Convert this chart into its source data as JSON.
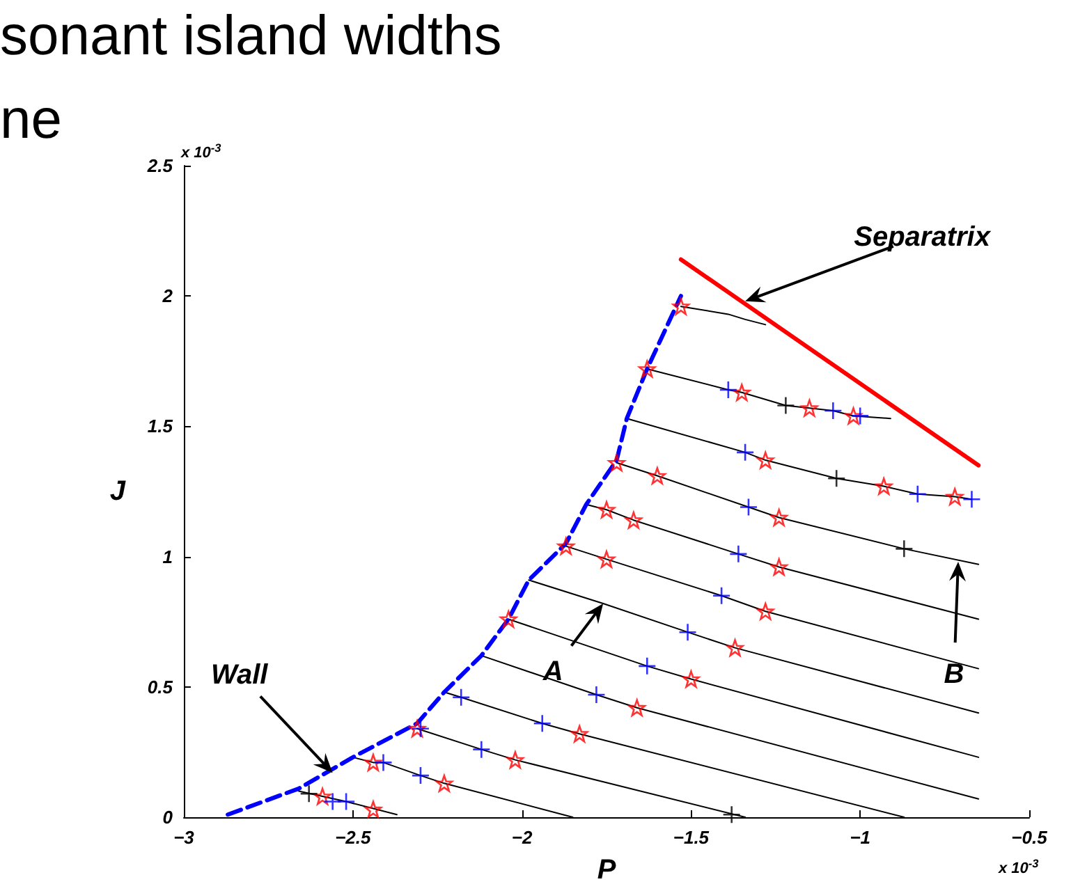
{
  "chart_data": {
    "type": "line",
    "title": "sonant island widths",
    "subtitle": "ne",
    "xlabel": "P",
    "ylabel": "J",
    "xlim": [
      -3,
      -0.5
    ],
    "xticks": [
      -3,
      -2.5,
      -2,
      -1.5,
      -1,
      -0.5
    ],
    "ylim": [
      0,
      2.5
    ],
    "yticks": [
      0,
      0.5,
      1,
      1.5,
      2,
      2.5
    ],
    "grid": false,
    "marker": "none",
    "annotations": [
      "x 10$^{-3}$",
      "x 10$^{-3}$",
      {
        "text": "Separatrix",
        "x": -1.34,
        "y": 1.98
      },
      {
        "text": "Wall",
        "x": -2.56,
        "y": 0.17
      },
      {
        "text": "A",
        "x": -1.76,
        "y": 0.82
      },
      {
        "text": "B",
        "x": -0.71,
        "y": 0.98
      }
    ],
    "series": [
      {
        "color": "#0000ff",
        "line_style": "dashed",
        "x": [
          -2.87,
          -2.66,
          -2.5,
          -2.31,
          -2.23,
          -2.12,
          -2.04,
          -1.98,
          -1.87,
          -1.81,
          -1.72,
          -1.69,
          -1.63,
          -1.53
        ],
        "values": [
          0.01,
          0.11,
          0.23,
          0.36,
          0.48,
          0.62,
          0.76,
          0.91,
          1.05,
          1.2,
          1.37,
          1.53,
          1.72,
          2.0
        ]
      },
      {
        "color": "#ff0000",
        "line_style": "solid",
        "x": [
          -1.53,
          -0.65
        ],
        "values": [
          2.14,
          1.35
        ]
      },
      {
        "color": "#000000",
        "x": [
          -1.53,
          -1.39,
          -1.34,
          -1.28
        ],
        "values": [
          1.96,
          1.93,
          1.91,
          1.89
        ]
      },
      {
        "color": "#000000",
        "x": [
          -1.63,
          -1.39,
          -1.35,
          -1.22,
          -1.15,
          -1.08,
          -1.02,
          -0.91
        ],
        "values": [
          1.72,
          1.64,
          1.63,
          1.58,
          1.57,
          1.56,
          1.54,
          1.53
        ]
      },
      {
        "color": "#000000",
        "x": [
          -1.69,
          -1.34,
          -1.28,
          -1.07,
          -0.93,
          -0.83,
          -0.72,
          -0.67
        ],
        "values": [
          1.53,
          1.4,
          1.37,
          1.3,
          1.27,
          1.24,
          1.23,
          1.22
        ]
      },
      {
        "color": "#000000",
        "x": [
          -1.72,
          -1.6,
          -1.33,
          -1.24,
          -0.87,
          -0.65
        ],
        "values": [
          1.36,
          1.31,
          1.19,
          1.15,
          1.03,
          0.97
        ]
      },
      {
        "color": "#000000",
        "x": [
          -1.81,
          -1.75,
          -1.67,
          -1.36,
          -1.24,
          -0.65
        ],
        "values": [
          1.2,
          1.18,
          1.14,
          1.01,
          0.96,
          0.76
        ]
      },
      {
        "color": "#000000",
        "x": [
          -1.87,
          -1.75,
          -1.41,
          -1.28,
          -0.65
        ],
        "values": [
          1.04,
          0.99,
          0.85,
          0.79,
          0.57
        ]
      },
      {
        "color": "#000000",
        "x": [
          -1.98,
          -1.76,
          -1.51,
          -1.37,
          -0.65
        ],
        "values": [
          0.91,
          0.82,
          0.71,
          0.65,
          0.4
        ]
      },
      {
        "color": "#000000",
        "x": [
          -2.04,
          -1.63,
          -1.5,
          -0.65
        ],
        "values": [
          0.76,
          0.58,
          0.53,
          0.23
        ]
      },
      {
        "color": "#000000",
        "x": [
          -2.12,
          -1.78,
          -1.66,
          -0.65
        ],
        "values": [
          0.62,
          0.47,
          0.42,
          0.07
        ]
      },
      {
        "color": "#000000",
        "x": [
          -2.23,
          -2.18,
          -1.94,
          -1.83,
          -0.87
        ],
        "values": [
          0.48,
          0.46,
          0.36,
          0.32,
          0
        ]
      },
      {
        "color": "#000000",
        "x": [
          -2.31,
          -2.12,
          -2.02,
          -1.34
        ],
        "values": [
          0.34,
          0.26,
          0.22,
          0
        ]
      },
      {
        "color": "#000000",
        "x": [
          -2.5,
          -2.44,
          -2.41,
          -2.3,
          -2.23,
          -1.85
        ],
        "values": [
          0.23,
          0.21,
          0.21,
          0.16,
          0.13,
          0
        ]
      },
      {
        "color": "#000000",
        "x": [
          -2.66,
          -2.59,
          -2.52,
          -2.37
        ],
        "values": [
          0.1,
          0.08,
          0.06,
          0.01
        ]
      },
      {
        "type": "scatter",
        "color": "#ff0000",
        "marker": "star",
        "x": [
          -1.53,
          -1.63,
          -1.35,
          -1.15,
          -1.02,
          -1.28,
          -0.93,
          -0.72,
          -1.72,
          -1.6,
          -1.24,
          -1.75,
          -1.67,
          -1.24,
          -1.87,
          -1.75,
          -1.28,
          -1.37,
          -2.04,
          -1.5,
          -1.66,
          -1.83,
          -2.31,
          -2.02,
          -2.44,
          -2.23,
          -2.59,
          -2.44
        ],
        "values": [
          1.96,
          1.72,
          1.63,
          1.57,
          1.54,
          1.37,
          1.27,
          1.23,
          1.36,
          1.31,
          1.15,
          1.18,
          1.14,
          0.96,
          1.04,
          0.99,
          0.79,
          0.65,
          0.76,
          0.53,
          0.42,
          0.32,
          0.34,
          0.22,
          0.21,
          0.13,
          0.08,
          0.03
        ]
      },
      {
        "type": "scatter",
        "color": "#0000ff",
        "marker": "cross",
        "x": [
          -1.39,
          -1.08,
          -1.0,
          -1.34,
          -0.83,
          -0.67,
          -1.33,
          -1.36,
          -1.41,
          -1.51,
          -1.63,
          -1.78,
          -2.18,
          -1.94,
          -2.3,
          -2.12,
          -2.41,
          -2.3,
          -2.56,
          -2.52
        ],
        "values": [
          1.64,
          1.56,
          1.54,
          1.4,
          1.24,
          1.22,
          1.19,
          1.01,
          0.85,
          0.71,
          0.58,
          0.47,
          0.46,
          0.36,
          0.34,
          0.26,
          0.21,
          0.16,
          0.06,
          0.06
        ]
      },
      {
        "type": "scatter",
        "color": "#000000",
        "marker": "cross",
        "x": [
          -1.22,
          -1.07,
          -0.87,
          -2.63,
          -1.38
        ],
        "values": [
          1.58,
          1.3,
          1.03,
          0.09,
          0.01
        ]
      }
    ]
  }
}
